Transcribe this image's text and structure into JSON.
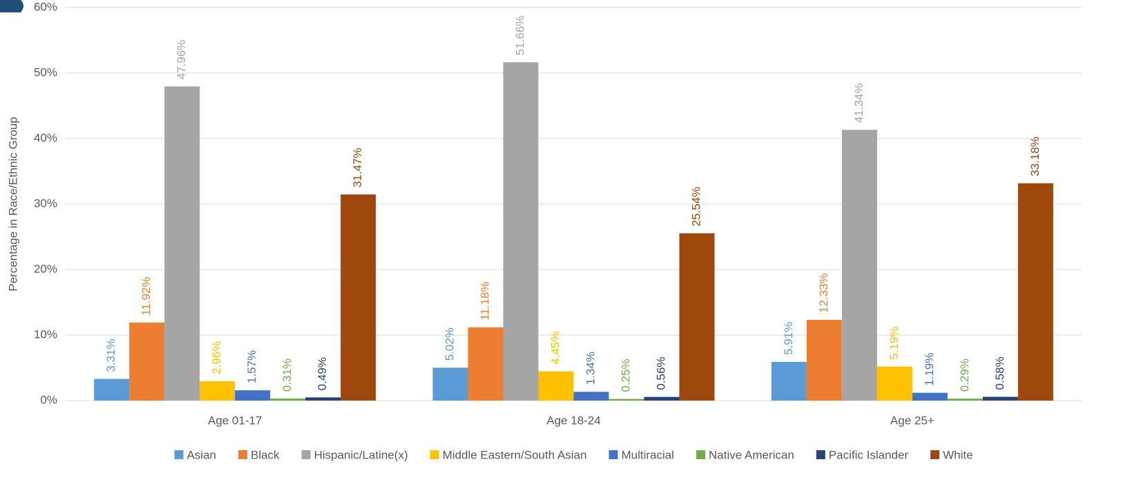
{
  "chart_data": {
    "type": "bar",
    "y_label": "Percentage in Race/Ethnic Group",
    "categories": [
      "Age 01-17",
      "Age 18-24",
      "Age 25+"
    ],
    "series": [
      {
        "name": "Asian",
        "color": "#5b9bd5",
        "values": [
          3.31,
          5.02,
          5.91
        ],
        "value_labels": [
          "3.31%",
          "5.02%",
          "5.91%"
        ]
      },
      {
        "name": "Black",
        "color": "#ed7d31",
        "values": [
          11.92,
          11.18,
          12.33
        ],
        "value_labels": [
          "11.92%",
          "11.18%",
          "12.33%"
        ]
      },
      {
        "name": "Hispanic/Latine(x)",
        "color": "#a5a5a5",
        "values": [
          47.96,
          51.66,
          41.34
        ],
        "value_labels": [
          "47.96%",
          "51.66%",
          "41.34%"
        ]
      },
      {
        "name": "Middle Eastern/South Asian",
        "color": "#ffc000",
        "values": [
          2.96,
          4.45,
          5.19
        ],
        "value_labels": [
          "2.96%",
          "4.45%",
          "5.19%"
        ]
      },
      {
        "name": "Multiracial",
        "color": "#4472c4",
        "values": [
          1.57,
          1.34,
          1.19
        ],
        "value_labels": [
          "1.57%",
          "1.34%",
          "1.19%"
        ]
      },
      {
        "name": "Native American",
        "color": "#70ad47",
        "values": [
          0.31,
          0.25,
          0.29
        ],
        "value_labels": [
          "0.31%",
          "0.25%",
          "0.29%"
        ]
      },
      {
        "name": "Pacific Islander",
        "color": "#264478",
        "values": [
          0.49,
          0.56,
          0.58
        ],
        "value_labels": [
          "0.49%",
          "0.56%",
          "0.58%"
        ]
      },
      {
        "name": "White",
        "color": "#9e480e",
        "values": [
          31.47,
          25.54,
          33.18
        ],
        "value_labels": [
          "31.47%",
          "25.54%",
          "33.18%"
        ]
      }
    ],
    "ylim": [
      0,
      60
    ],
    "yticks": [
      {
        "value": 0,
        "label": "0%"
      },
      {
        "value": 10,
        "label": "10%"
      },
      {
        "value": 20,
        "label": "20%"
      },
      {
        "value": 30,
        "label": "30%"
      },
      {
        "value": 40,
        "label": "40%"
      },
      {
        "value": 50,
        "label": "50%"
      },
      {
        "value": 60,
        "label": "60%"
      }
    ],
    "grid": true,
    "legend": "bottom"
  }
}
